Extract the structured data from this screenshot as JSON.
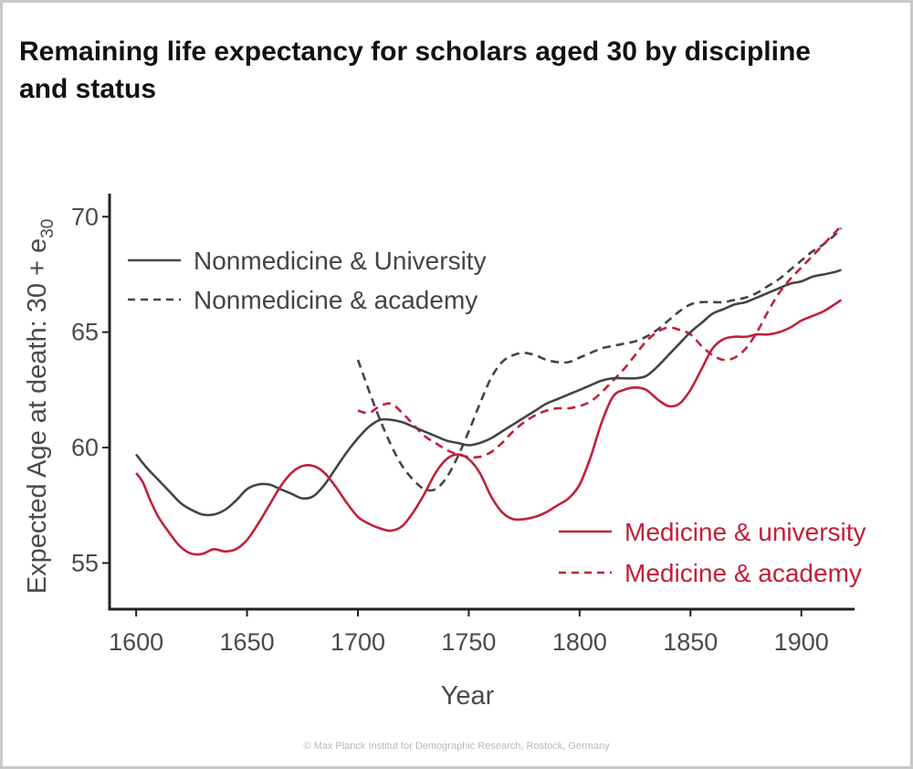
{
  "title": "Remaining life expectancy for scholars aged 30 by discipline and status",
  "footer": "©  Max Planck Institut for Demographic Research, Rostock, Germany",
  "colors": {
    "nonmedicine": "#444444",
    "medicine": "#c0203a",
    "axis": "#222222",
    "text": "#4a4a4a"
  },
  "chart_data": {
    "type": "line",
    "title": "Remaining life expectancy for scholars aged 30 by discipline and status",
    "xlabel": "Year",
    "ylabel": "Expected Age at death: 30 + e",
    "ylabel_subscript": "30",
    "xlim": [
      1588,
      1924
    ],
    "ylim": [
      53,
      71
    ],
    "xticks": [
      "1600",
      "1650",
      "1700",
      "1750",
      "1800",
      "1850",
      "1900"
    ],
    "yticks": [
      "55",
      "60",
      "65",
      "70"
    ],
    "grid": false,
    "legend": [
      {
        "position": "top-left",
        "items": [
          "Nonmedicine & University",
          "Nonmedicine & academy"
        ]
      },
      {
        "position": "bottom-right",
        "items": [
          "Medicine & university",
          "Medicine & academy"
        ]
      }
    ],
    "series": [
      {
        "name": "Nonmedicine & University",
        "color": "#444444",
        "dash": "solid",
        "x": [
          1600,
          1605,
          1610,
          1615,
          1620,
          1625,
          1630,
          1635,
          1640,
          1645,
          1650,
          1655,
          1660,
          1665,
          1670,
          1675,
          1680,
          1685,
          1690,
          1695,
          1700,
          1705,
          1710,
          1715,
          1720,
          1725,
          1730,
          1735,
          1740,
          1745,
          1750,
          1755,
          1760,
          1765,
          1770,
          1775,
          1780,
          1785,
          1790,
          1795,
          1800,
          1805,
          1810,
          1815,
          1820,
          1825,
          1830,
          1835,
          1840,
          1845,
          1850,
          1855,
          1860,
          1865,
          1870,
          1875,
          1880,
          1885,
          1890,
          1895,
          1900,
          1905,
          1910,
          1915,
          1918
        ],
        "y": [
          59.7,
          59.1,
          58.6,
          58.1,
          57.6,
          57.3,
          57.1,
          57.1,
          57.3,
          57.7,
          58.2,
          58.4,
          58.4,
          58.2,
          58.0,
          57.8,
          57.9,
          58.4,
          59.1,
          59.8,
          60.4,
          60.9,
          61.2,
          61.2,
          61.1,
          60.9,
          60.7,
          60.5,
          60.3,
          60.2,
          60.1,
          60.2,
          60.4,
          60.7,
          61.0,
          61.3,
          61.6,
          61.9,
          62.1,
          62.3,
          62.5,
          62.7,
          62.9,
          63.0,
          63.0,
          63.0,
          63.1,
          63.5,
          64.0,
          64.5,
          65.0,
          65.4,
          65.8,
          66.0,
          66.2,
          66.3,
          66.5,
          66.7,
          66.9,
          67.1,
          67.2,
          67.4,
          67.5,
          67.6,
          67.7
        ]
      },
      {
        "name": "Nonmedicine & academy",
        "color": "#444444",
        "dash": "dashed",
        "x": [
          1700,
          1703,
          1706,
          1710,
          1715,
          1720,
          1725,
          1730,
          1735,
          1740,
          1745,
          1750,
          1755,
          1760,
          1765,
          1770,
          1775,
          1780,
          1785,
          1790,
          1795,
          1800,
          1805,
          1810,
          1815,
          1820,
          1825,
          1830,
          1835,
          1840,
          1845,
          1850,
          1855,
          1860,
          1865,
          1870,
          1875,
          1880,
          1885,
          1890,
          1895,
          1900,
          1905,
          1910,
          1915,
          1918
        ],
        "y": [
          63.8,
          63.0,
          62.2,
          61.2,
          60.1,
          59.2,
          58.6,
          58.2,
          58.2,
          58.7,
          59.6,
          60.7,
          61.9,
          63.0,
          63.7,
          64.0,
          64.1,
          64.0,
          63.8,
          63.7,
          63.7,
          63.9,
          64.1,
          64.3,
          64.4,
          64.5,
          64.6,
          64.8,
          65.1,
          65.5,
          65.9,
          66.2,
          66.3,
          66.3,
          66.3,
          66.4,
          66.5,
          66.7,
          67.0,
          67.3,
          67.7,
          68.1,
          68.5,
          68.8,
          69.2,
          69.5
        ]
      },
      {
        "name": "Medicine & university",
        "color": "#c0203a",
        "dash": "solid",
        "x": [
          1600,
          1603,
          1606,
          1610,
          1615,
          1620,
          1625,
          1630,
          1635,
          1640,
          1645,
          1650,
          1655,
          1660,
          1665,
          1670,
          1675,
          1680,
          1685,
          1690,
          1695,
          1700,
          1705,
          1710,
          1715,
          1720,
          1725,
          1730,
          1735,
          1740,
          1745,
          1750,
          1755,
          1760,
          1765,
          1770,
          1775,
          1780,
          1785,
          1790,
          1795,
          1800,
          1805,
          1810,
          1815,
          1820,
          1825,
          1830,
          1835,
          1840,
          1845,
          1850,
          1855,
          1860,
          1865,
          1870,
          1875,
          1880,
          1885,
          1890,
          1895,
          1900,
          1905,
          1910,
          1915,
          1918
        ],
        "y": [
          58.9,
          58.5,
          57.8,
          57.0,
          56.3,
          55.7,
          55.4,
          55.4,
          55.6,
          55.5,
          55.6,
          56.0,
          56.7,
          57.5,
          58.3,
          58.9,
          59.2,
          59.2,
          58.9,
          58.3,
          57.6,
          57.0,
          56.7,
          56.5,
          56.4,
          56.6,
          57.2,
          58.0,
          58.9,
          59.5,
          59.7,
          59.5,
          58.9,
          57.9,
          57.2,
          56.9,
          56.9,
          57.0,
          57.2,
          57.5,
          57.8,
          58.4,
          59.6,
          61.1,
          62.2,
          62.5,
          62.6,
          62.5,
          62.1,
          61.8,
          61.9,
          62.5,
          63.4,
          64.3,
          64.7,
          64.8,
          64.8,
          64.9,
          64.9,
          65.0,
          65.2,
          65.5,
          65.7,
          65.9,
          66.2,
          66.4
        ]
      },
      {
        "name": "Medicine & academy",
        "color": "#c0203a",
        "dash": "dashed",
        "x": [
          1700,
          1705,
          1710,
          1715,
          1720,
          1725,
          1730,
          1735,
          1740,
          1745,
          1750,
          1755,
          1760,
          1765,
          1770,
          1775,
          1780,
          1785,
          1790,
          1795,
          1800,
          1805,
          1810,
          1815,
          1820,
          1825,
          1830,
          1835,
          1840,
          1845,
          1850,
          1855,
          1860,
          1865,
          1870,
          1875,
          1880,
          1885,
          1890,
          1895,
          1900,
          1905,
          1910,
          1915,
          1918
        ],
        "y": [
          61.6,
          61.5,
          61.8,
          61.9,
          61.5,
          61.0,
          60.5,
          60.2,
          59.9,
          59.7,
          59.6,
          59.6,
          59.8,
          60.2,
          60.7,
          61.1,
          61.4,
          61.6,
          61.7,
          61.7,
          61.8,
          62.0,
          62.4,
          62.9,
          63.4,
          64.0,
          64.6,
          65.0,
          65.2,
          65.1,
          64.9,
          64.4,
          64.0,
          63.8,
          63.9,
          64.3,
          65.0,
          65.9,
          66.7,
          67.3,
          67.8,
          68.3,
          68.8,
          69.3,
          69.6
        ]
      }
    ]
  }
}
